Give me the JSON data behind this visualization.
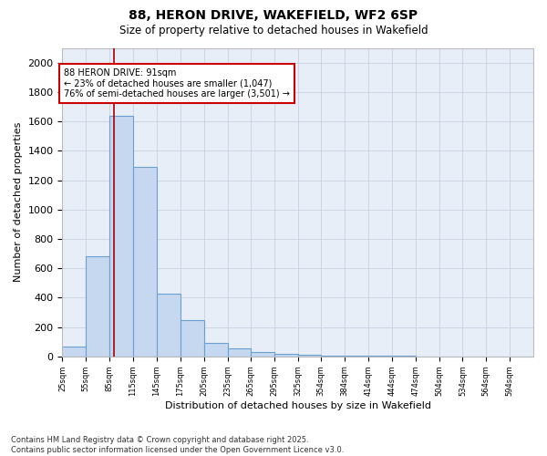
{
  "title": "88, HERON DRIVE, WAKEFIELD, WF2 6SP",
  "subtitle": "Size of property relative to detached houses in Wakefield",
  "xlabel": "Distribution of detached houses by size in Wakefield",
  "ylabel": "Number of detached properties",
  "bar_color": "#c5d8f0",
  "bar_edge_color": "#6a9fd4",
  "background_color": "#e8eef8",
  "annotation_text": "88 HERON DRIVE: 91sqm\n← 23% of detached houses are smaller (1,047)\n76% of semi-detached houses are larger (3,501) →",
  "vline_x": 91,
  "vline_color": "#aa0000",
  "bins": [
    25,
    55,
    85,
    115,
    145,
    175,
    205,
    235,
    265,
    295,
    325,
    354,
    384,
    414,
    444,
    474,
    504,
    534,
    564,
    594,
    624
  ],
  "counts": [
    70,
    680,
    1640,
    1290,
    430,
    250,
    90,
    55,
    30,
    18,
    12,
    8,
    5,
    5,
    3,
    2,
    0,
    0,
    0,
    0
  ],
  "ylim": [
    0,
    2100
  ],
  "yticks": [
    0,
    200,
    400,
    600,
    800,
    1000,
    1200,
    1400,
    1600,
    1800,
    2000
  ],
  "footer_text": "Contains HM Land Registry data © Crown copyright and database right 2025.\nContains public sector information licensed under the Open Government Licence v3.0.",
  "grid_color": "#c8d0e0"
}
